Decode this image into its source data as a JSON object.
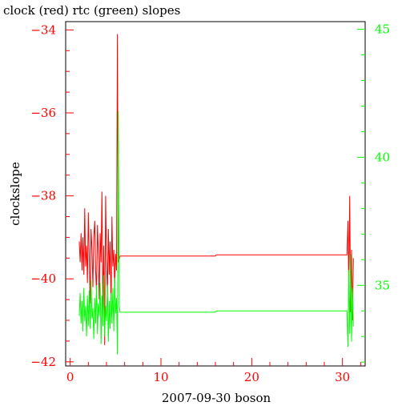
{
  "chart_data": {
    "type": "line",
    "title": "clock (red) rtc (green) slopes",
    "xlabel": "2007-09-30 boson",
    "ylabel": "clockslope",
    "xlim": [
      -0.5,
      32.5
    ],
    "x_ticks": [
      0,
      10,
      20,
      30
    ],
    "y_left": {
      "lim": [
        -42.1,
        -33.8
      ],
      "ticks": [
        -42,
        -40,
        -38,
        -36,
        -34
      ],
      "color": "#ff0000"
    },
    "y_right": {
      "lim": [
        31.85,
        45.3
      ],
      "ticks": [
        35,
        40,
        45
      ],
      "color": "#00ff00"
    },
    "grid": false,
    "series": [
      {
        "name": "clock",
        "color": "#ff0000",
        "axis": "left",
        "points": [
          [
            1.0,
            -39.1
          ],
          [
            1.1,
            -39.6
          ],
          [
            1.2,
            -38.9
          ],
          [
            1.3,
            -39.8
          ],
          [
            1.4,
            -39.0
          ],
          [
            1.5,
            -39.9
          ],
          [
            1.6,
            -38.3
          ],
          [
            1.7,
            -39.7
          ],
          [
            1.8,
            -39.2
          ],
          [
            1.9,
            -40.1
          ],
          [
            2.0,
            -38.4
          ],
          [
            2.1,
            -39.5
          ],
          [
            2.2,
            -40.6
          ],
          [
            2.3,
            -38.8
          ],
          [
            2.4,
            -39.3
          ],
          [
            2.5,
            -40.2
          ],
          [
            2.6,
            -39.0
          ],
          [
            2.7,
            -38.6
          ],
          [
            2.8,
            -39.8
          ],
          [
            2.9,
            -40.3
          ],
          [
            3.0,
            -38.7
          ],
          [
            3.1,
            -39.4
          ],
          [
            3.2,
            -40.5
          ],
          [
            3.3,
            -38.9
          ],
          [
            3.4,
            -39.6
          ],
          [
            3.5,
            -37.9
          ],
          [
            3.6,
            -40.8
          ],
          [
            3.7,
            -39.2
          ],
          [
            3.8,
            -41.6
          ],
          [
            3.9,
            -38.0
          ],
          [
            4.0,
            -39.5
          ],
          [
            4.1,
            -40.4
          ],
          [
            4.2,
            -38.8
          ],
          [
            4.3,
            -39.9
          ],
          [
            4.4,
            -39.1
          ],
          [
            4.5,
            -40.7
          ],
          [
            4.6,
            -38.5
          ],
          [
            4.7,
            -39.7
          ],
          [
            4.8,
            -39.3
          ],
          [
            4.9,
            -40.2
          ],
          [
            5.0,
            -39.4
          ],
          [
            5.1,
            -39.8
          ],
          [
            5.2,
            -34.1
          ],
          [
            5.3,
            -39.6
          ],
          [
            5.5,
            -39.45
          ],
          [
            16.0,
            -39.45
          ],
          [
            16.1,
            -39.42
          ],
          [
            30.5,
            -39.42
          ],
          [
            30.6,
            -38.6
          ],
          [
            30.7,
            -40.2
          ],
          [
            30.8,
            -38.0
          ],
          [
            30.9,
            -40.8
          ],
          [
            31.0,
            -39.3
          ],
          [
            31.1,
            -41.0
          ],
          [
            31.2,
            -39.5
          ]
        ]
      },
      {
        "name": "rtc",
        "color": "#00ff00",
        "axis": "right",
        "points": [
          [
            1.0,
            33.8
          ],
          [
            1.1,
            34.7
          ],
          [
            1.2,
            33.5
          ],
          [
            1.3,
            34.4
          ],
          [
            1.4,
            33.2
          ],
          [
            1.5,
            34.9
          ],
          [
            1.6,
            33.6
          ],
          [
            1.7,
            34.2
          ],
          [
            1.8,
            33.0
          ],
          [
            1.9,
            34.6
          ],
          [
            2.0,
            33.4
          ],
          [
            2.1,
            34.8
          ],
          [
            2.2,
            33.3
          ],
          [
            2.3,
            35.2
          ],
          [
            2.4,
            33.7
          ],
          [
            2.5,
            34.1
          ],
          [
            2.6,
            32.9
          ],
          [
            2.7,
            34.5
          ],
          [
            2.8,
            33.5
          ],
          [
            2.9,
            35.0
          ],
          [
            3.0,
            33.1
          ],
          [
            3.1,
            34.3
          ],
          [
            3.2,
            33.8
          ],
          [
            3.3,
            35.1
          ],
          [
            3.4,
            32.7
          ],
          [
            3.5,
            34.6
          ],
          [
            3.6,
            33.4
          ],
          [
            3.7,
            35.4
          ],
          [
            3.8,
            33.0
          ],
          [
            3.9,
            34.2
          ],
          [
            4.0,
            33.6
          ],
          [
            4.1,
            35.0
          ],
          [
            4.2,
            32.8
          ],
          [
            4.3,
            34.4
          ],
          [
            4.4,
            33.3
          ],
          [
            4.5,
            34.7
          ],
          [
            4.6,
            33.5
          ],
          [
            4.7,
            34.9
          ],
          [
            4.8,
            33.2
          ],
          [
            4.9,
            35.3
          ],
          [
            5.0,
            33.9
          ],
          [
            5.1,
            34.5
          ],
          [
            5.2,
            32.3
          ],
          [
            5.3,
            41.8
          ],
          [
            5.4,
            34.2
          ],
          [
            5.5,
            33.95
          ],
          [
            16.0,
            33.95
          ],
          [
            16.1,
            34.0
          ],
          [
            30.5,
            34.0
          ],
          [
            30.6,
            32.6
          ],
          [
            30.7,
            35.6
          ],
          [
            30.8,
            33.1
          ],
          [
            30.9,
            36.2
          ],
          [
            31.0,
            32.8
          ],
          [
            31.1,
            34.9
          ],
          [
            31.2,
            33.4
          ]
        ]
      }
    ]
  }
}
